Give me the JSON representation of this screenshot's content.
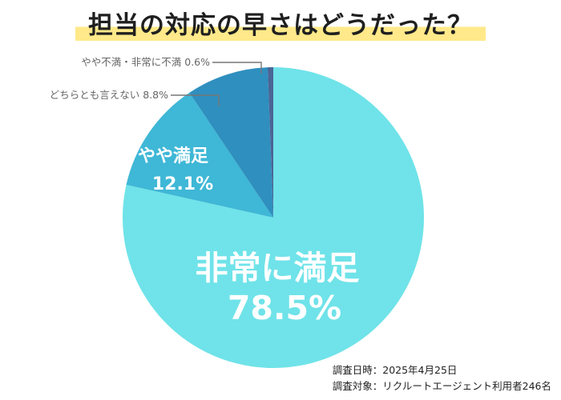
{
  "title": "担当の対応の早さはどうだった？",
  "chart_data": {
    "type": "pie",
    "title": "担当の対応の早さはどうだった？",
    "unit": "%",
    "slices": [
      {
        "label": "非常に満足",
        "value": 78.5,
        "color": "#6fe3e9",
        "label_color": "#ffffff"
      },
      {
        "label": "やや満足",
        "value": 12.1,
        "color": "#3fb7d6",
        "label_color": "#ffffff"
      },
      {
        "label": "どちらとも言えない",
        "value": 8.8,
        "color": "#2f8fbf",
        "label_color": "#666666"
      },
      {
        "label": "やや不満・非常に不満",
        "value": 0.6,
        "color": "#4a6596",
        "label_color": "#666666"
      }
    ]
  },
  "footer": {
    "date": "調査日時：2025年4月25日",
    "target": "調査対象：リクルートエージェント利用者246名"
  }
}
